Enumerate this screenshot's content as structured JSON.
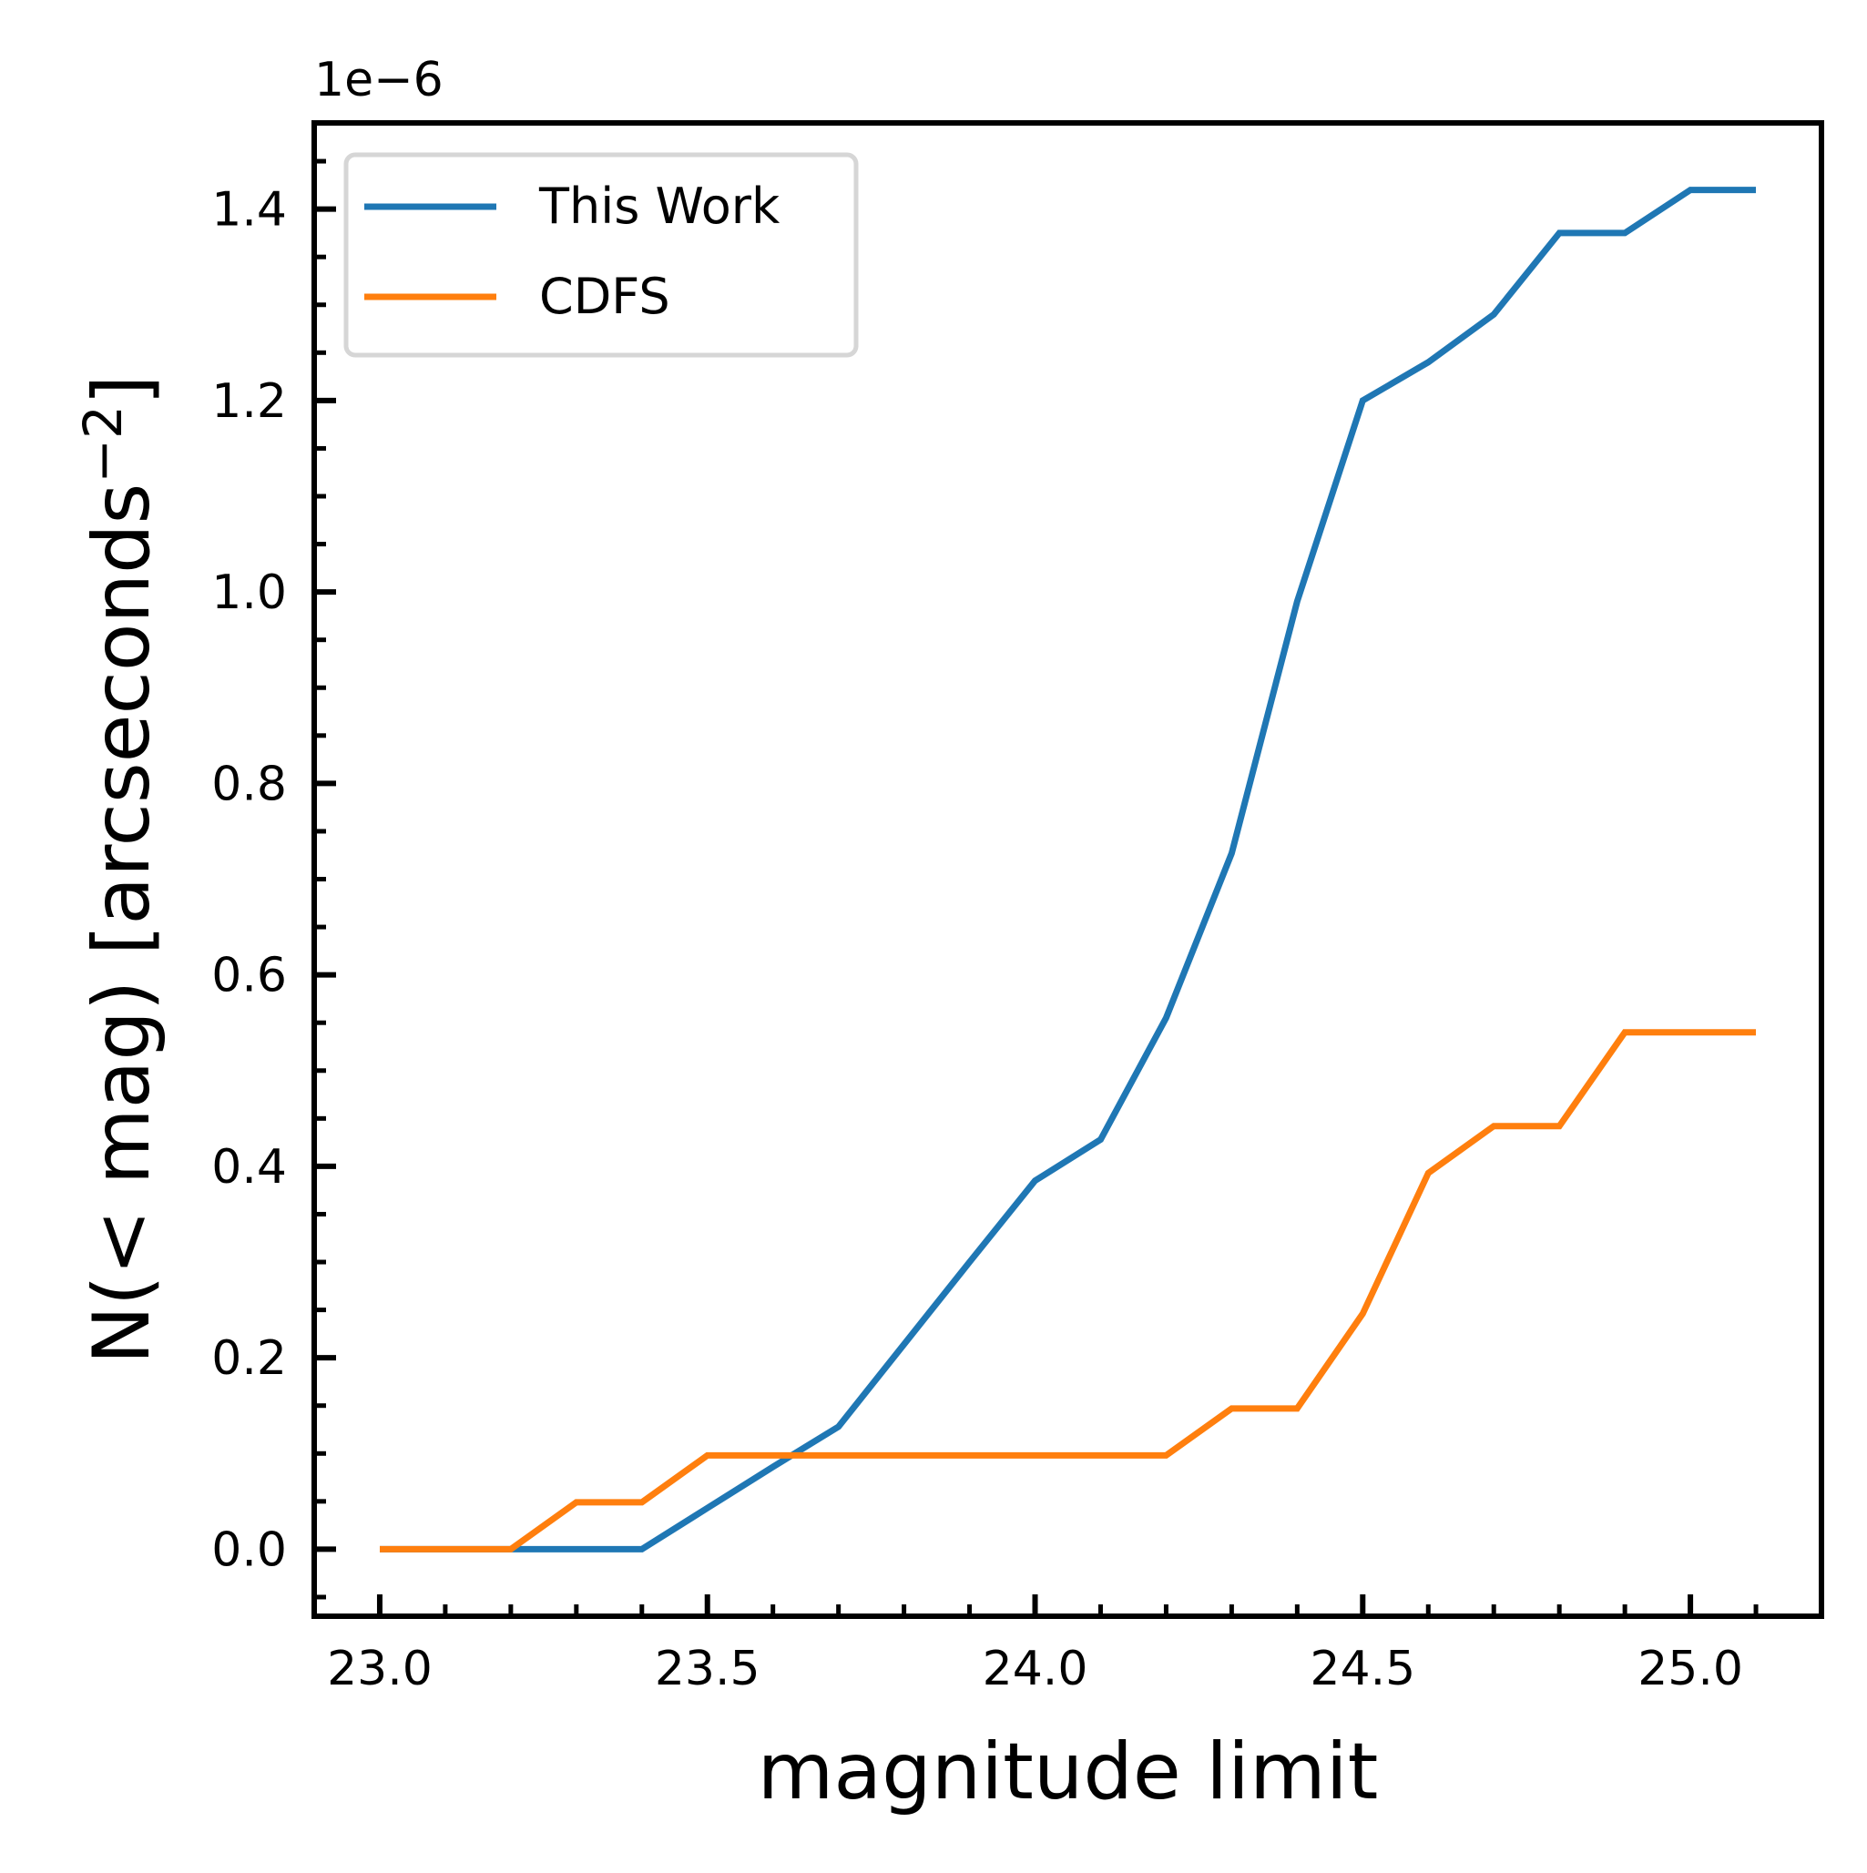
{
  "chart_data": {
    "type": "line",
    "title": "",
    "xlabel": "magnitude limit",
    "ylabel": "N(< mag) [arcseconds",
    "ylabel_superscript": "−2",
    "ylabel_close": "]",
    "y_offset_label": "1e−6",
    "xlim": [
      22.9,
      25.2
    ],
    "ylim": [
      -0.07,
      1.49
    ],
    "x_ticks": [
      23.0,
      23.5,
      24.0,
      24.5,
      25.0
    ],
    "x_tick_labels": [
      "23.0",
      "23.5",
      "24.0",
      "24.5",
      "25.0"
    ],
    "y_ticks": [
      0.0,
      0.2,
      0.4,
      0.6,
      0.8,
      1.0,
      1.2,
      1.4
    ],
    "y_tick_labels": [
      "0.0",
      "0.2",
      "0.4",
      "0.6",
      "0.8",
      "1.0",
      "1.2",
      "1.4"
    ],
    "grid": false,
    "legend_position": "top-left",
    "series": [
      {
        "name": "This Work",
        "color": "#1f77b4",
        "x": [
          23.0,
          23.1,
          23.2,
          23.3,
          23.4,
          23.5,
          23.6,
          23.7,
          23.8,
          23.9,
          24.0,
          24.1,
          24.2,
          24.3,
          24.4,
          24.5,
          24.6,
          24.7,
          24.8,
          24.9,
          25.0,
          25.1
        ],
        "y": [
          0.0,
          0.0,
          0.0,
          0.0,
          0.0,
          0.043,
          0.086,
          0.128,
          0.214,
          0.3,
          0.385,
          0.428,
          0.555,
          0.727,
          0.99,
          1.2,
          1.24,
          1.29,
          1.375,
          1.375,
          1.42,
          1.42
        ]
      },
      {
        "name": "CDFS",
        "color": "#ff7f0e",
        "x": [
          23.0,
          23.1,
          23.2,
          23.3,
          23.4,
          23.5,
          23.6,
          23.7,
          23.8,
          23.9,
          24.0,
          24.1,
          24.2,
          24.3,
          24.4,
          24.5,
          24.6,
          24.7,
          24.8,
          24.9,
          25.0,
          25.1
        ],
        "y": [
          0.0,
          0.0,
          0.0,
          0.049,
          0.049,
          0.098,
          0.098,
          0.098,
          0.098,
          0.098,
          0.098,
          0.098,
          0.098,
          0.147,
          0.147,
          0.246,
          0.393,
          0.442,
          0.442,
          0.54,
          0.54,
          0.54
        ]
      }
    ]
  }
}
